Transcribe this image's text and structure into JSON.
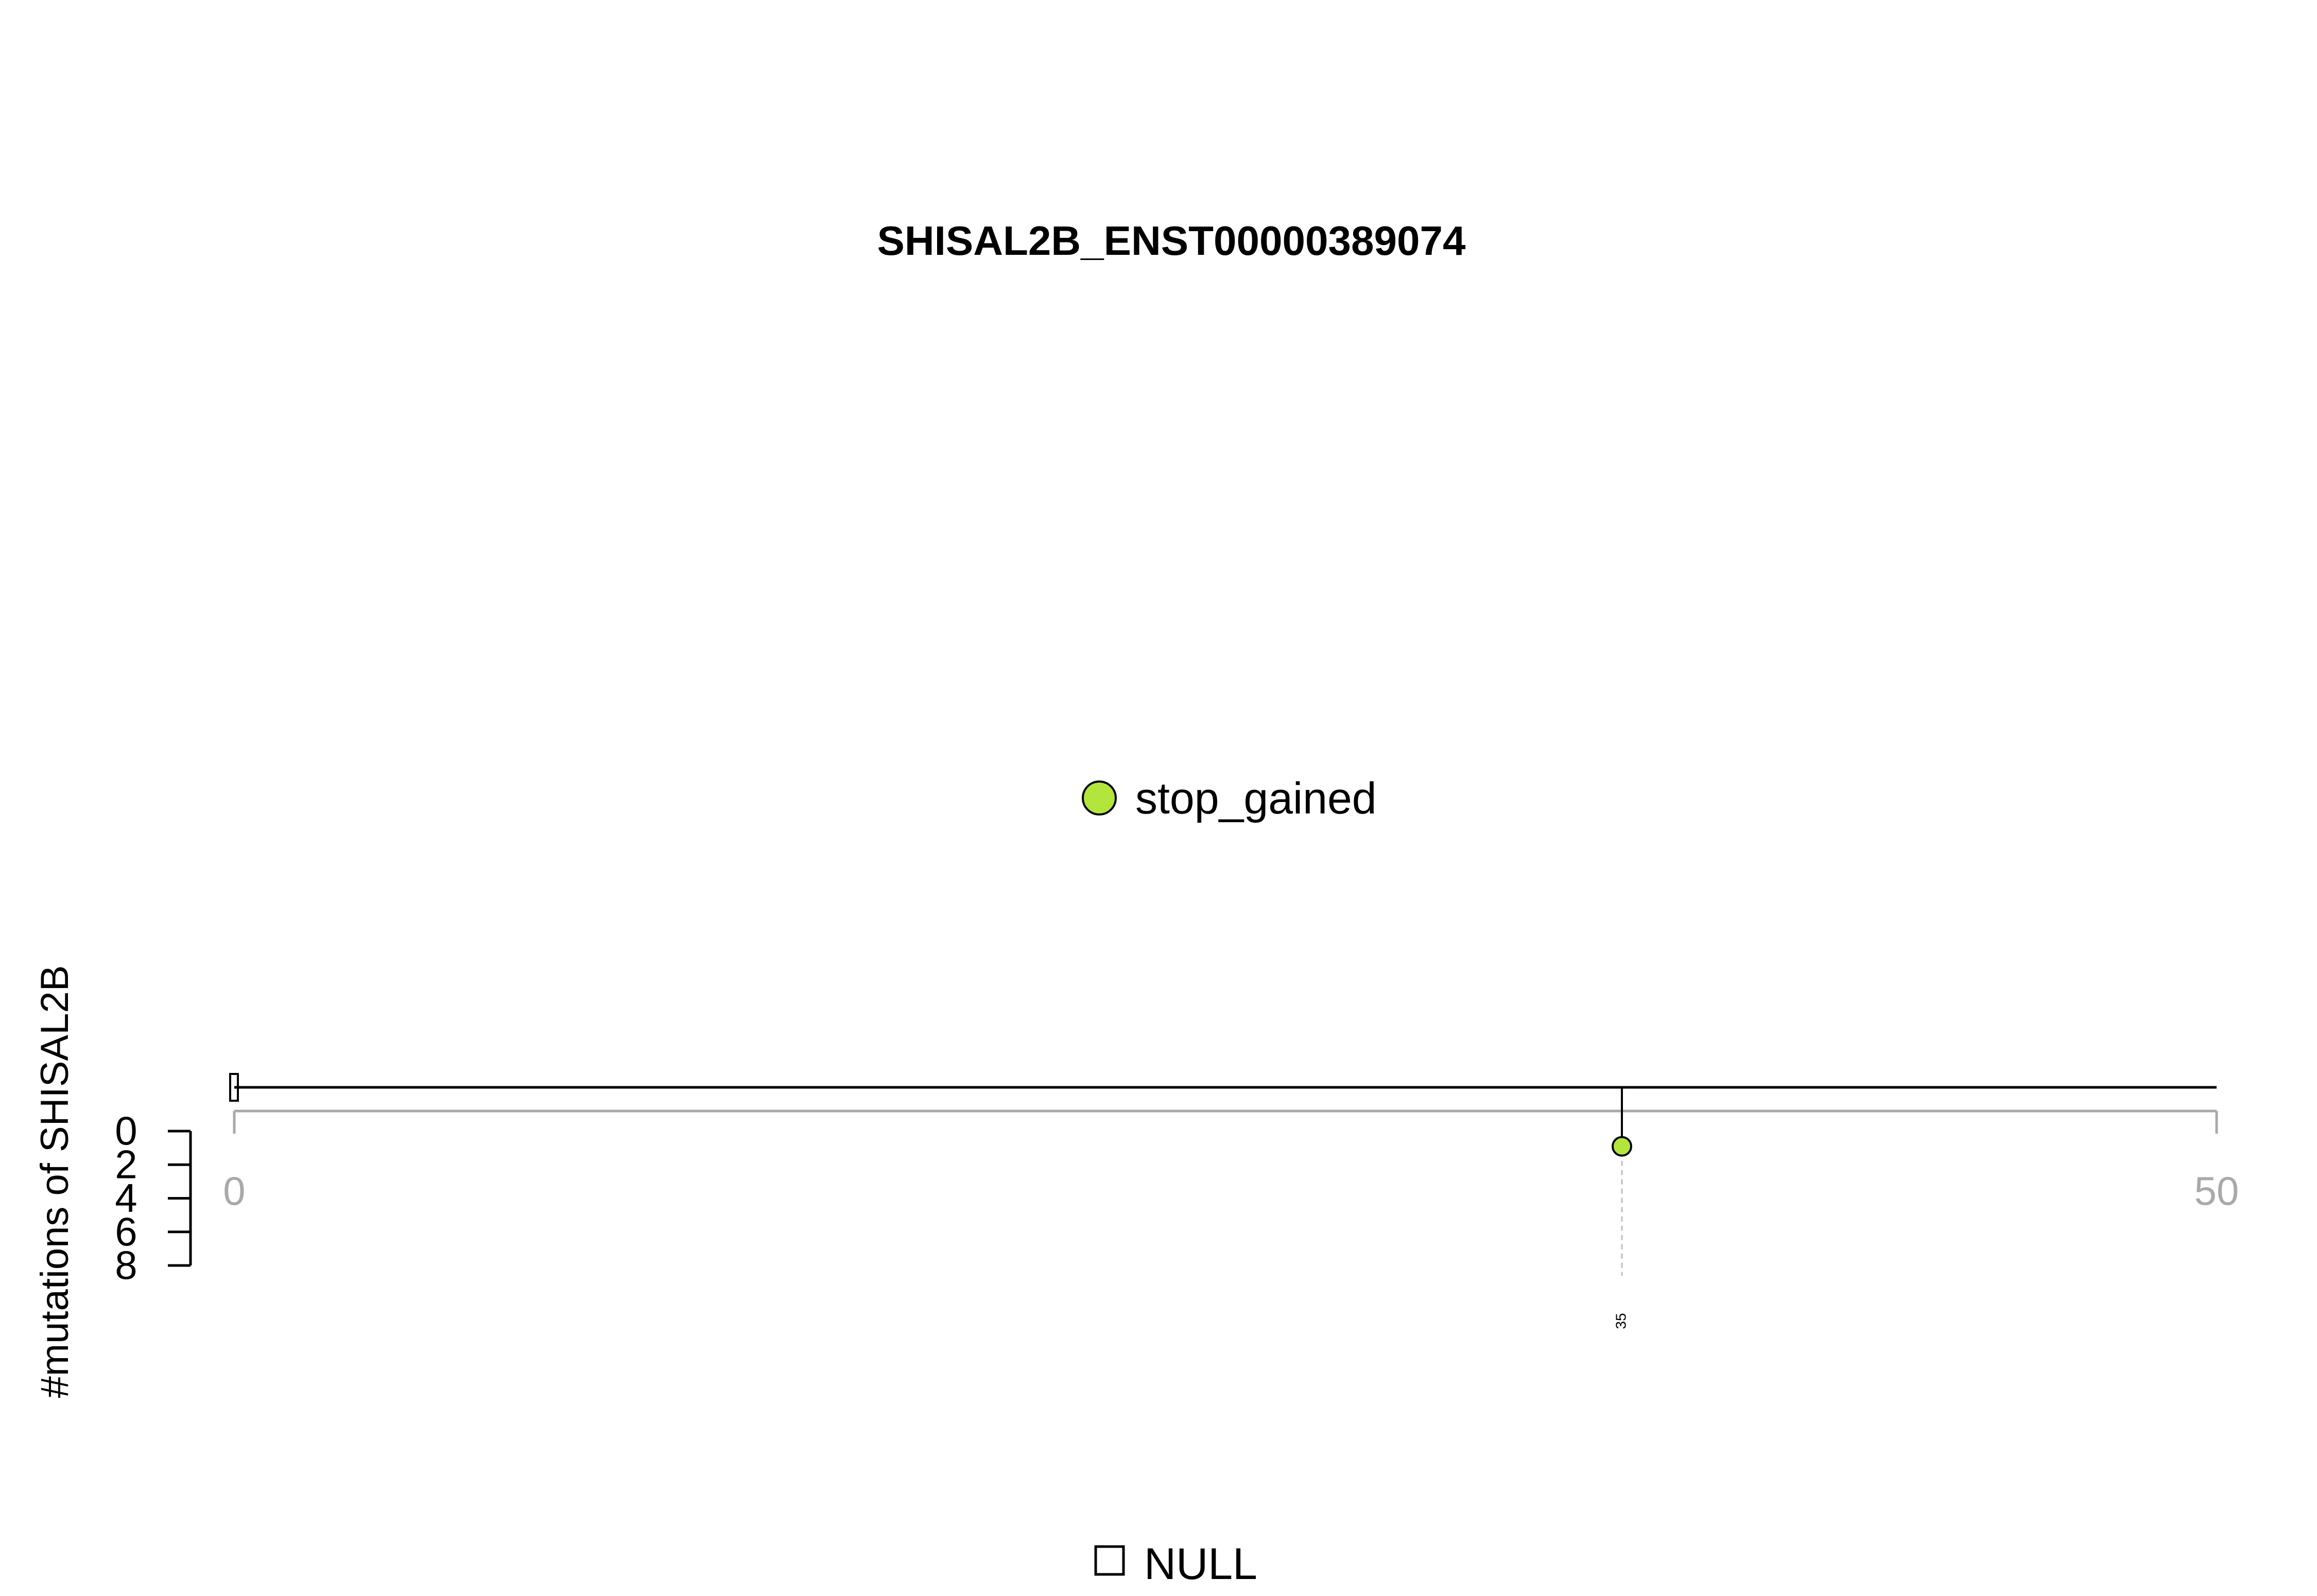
{
  "chart_data": {
    "type": "lollipop",
    "title": "SHISAL2B_ENST00000389074",
    "ylabel": "#mutations of SHISAL2B",
    "x_axis": {
      "range": [
        0,
        50
      ],
      "ticks": [
        0,
        50
      ],
      "tick_labels": [
        "0",
        "50"
      ]
    },
    "y_axis": {
      "range": [
        0,
        8
      ],
      "ticks": [
        0,
        2,
        4,
        6,
        8
      ],
      "tick_labels": [
        "0",
        "2",
        "4",
        "6",
        "8"
      ],
      "direction": "downward"
    },
    "mutations": [
      {
        "position": 35,
        "count": 1,
        "type": "stop_gained",
        "color": "#b3e63d",
        "label": "35"
      }
    ],
    "legend": [
      {
        "label": "stop_gained",
        "color": "#b3e63d",
        "shape": "circle"
      }
    ],
    "domain_legend": [
      {
        "label": "NULL",
        "color": "#ffffff",
        "shape": "square"
      }
    ],
    "grid": false
  }
}
